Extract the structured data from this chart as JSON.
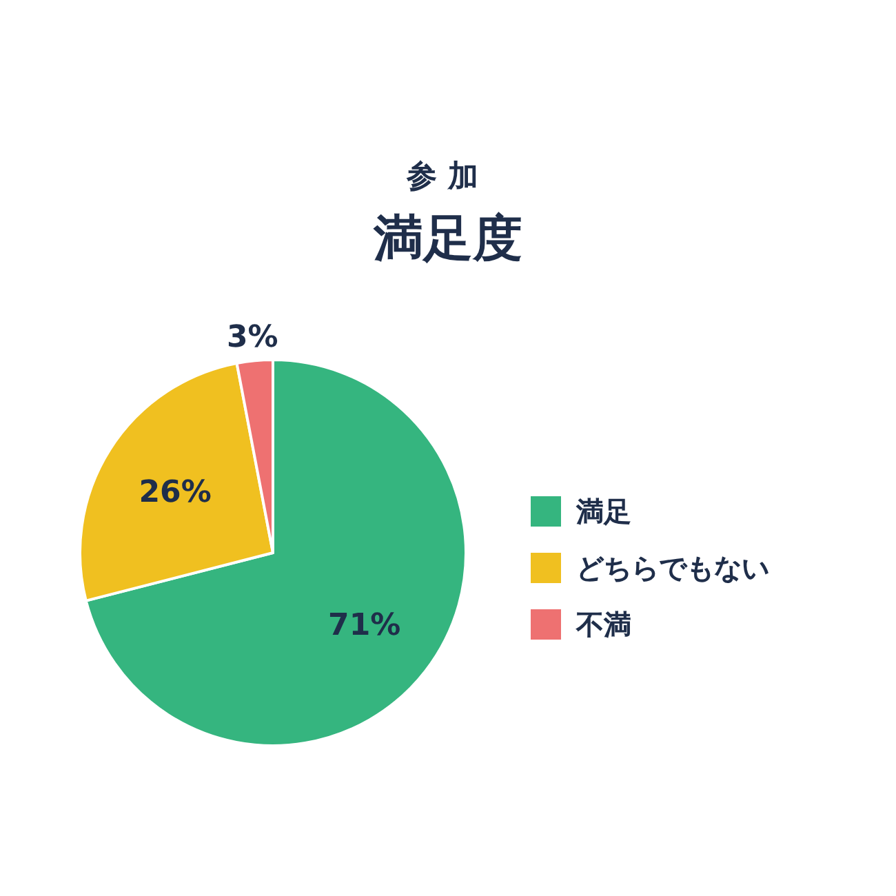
{
  "chart_data": {
    "type": "pie",
    "title": "参加",
    "subtitle": "満足度",
    "categories": [
      "満足",
      "どちらでもない",
      "不満"
    ],
    "values": [
      71,
      26,
      3
    ],
    "colors": [
      "#35b57f",
      "#f0c020",
      "#ee7171"
    ],
    "value_labels": [
      "71%",
      "26%",
      "3%"
    ],
    "legend": "right"
  }
}
